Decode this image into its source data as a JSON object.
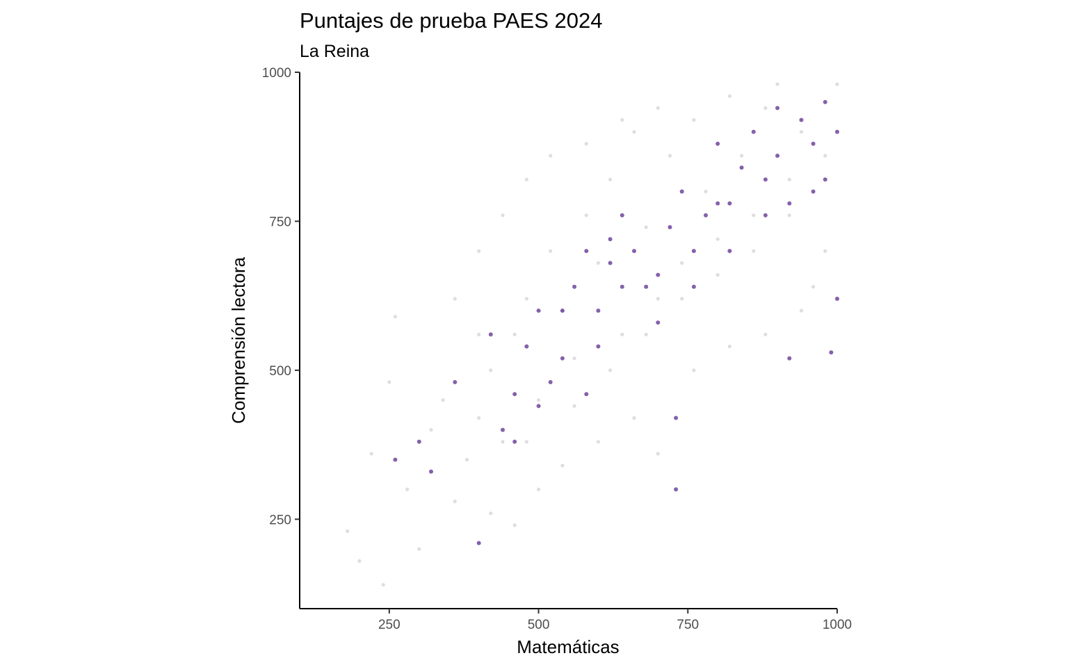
{
  "chart_data": {
    "type": "scatter",
    "title": "Puntajes de prueba PAES 2024",
    "subtitle": "La Reina",
    "xlabel": "Matemáticas",
    "ylabel": "Comprensión lectora",
    "xlim": [
      100,
      1000
    ],
    "ylim": [
      100,
      1000
    ],
    "x_ticks": [
      250,
      500,
      750,
      1000
    ],
    "y_ticks": [
      250,
      500,
      750,
      1000
    ],
    "grid": false,
    "legend": "none",
    "colors": {
      "highlight": "#5b2c8f",
      "background_points": "#c8c8c8"
    },
    "series": [
      {
        "role": "background",
        "points": [
          [
            180,
            230
          ],
          [
            200,
            180
          ],
          [
            220,
            360
          ],
          [
            240,
            140
          ],
          [
            260,
            590
          ],
          [
            250,
            480
          ],
          [
            280,
            300
          ],
          [
            300,
            200
          ],
          [
            320,
            400
          ],
          [
            340,
            450
          ],
          [
            360,
            280
          ],
          [
            380,
            350
          ],
          [
            400,
            420
          ],
          [
            420,
            500
          ],
          [
            440,
            380
          ],
          [
            460,
            560
          ],
          [
            480,
            620
          ],
          [
            500,
            450
          ],
          [
            520,
            700
          ],
          [
            540,
            600
          ],
          [
            560,
            520
          ],
          [
            580,
            760
          ],
          [
            600,
            680
          ],
          [
            620,
            820
          ],
          [
            640,
            560
          ],
          [
            660,
            900
          ],
          [
            680,
            740
          ],
          [
            700,
            620
          ],
          [
            720,
            860
          ],
          [
            740,
            680
          ],
          [
            760,
            920
          ],
          [
            780,
            800
          ],
          [
            800,
            720
          ],
          [
            820,
            960
          ],
          [
            840,
            860
          ],
          [
            860,
            700
          ],
          [
            880,
            940
          ],
          [
            900,
            980
          ],
          [
            920,
            760
          ],
          [
            940,
            900
          ],
          [
            960,
            640
          ],
          [
            980,
            860
          ],
          [
            1000,
            980
          ],
          [
            420,
            260
          ],
          [
            460,
            240
          ],
          [
            500,
            300
          ],
          [
            540,
            340
          ],
          [
            600,
            380
          ],
          [
            660,
            420
          ],
          [
            700,
            360
          ],
          [
            760,
            500
          ],
          [
            820,
            540
          ],
          [
            880,
            560
          ],
          [
            940,
            600
          ],
          [
            360,
            620
          ],
          [
            400,
            700
          ],
          [
            440,
            760
          ],
          [
            480,
            820
          ],
          [
            520,
            860
          ],
          [
            580,
            880
          ],
          [
            640,
            920
          ],
          [
            700,
            940
          ],
          [
            400,
            560
          ],
          [
            480,
            380
          ],
          [
            560,
            440
          ],
          [
            620,
            500
          ],
          [
            680,
            560
          ],
          [
            740,
            620
          ],
          [
            800,
            660
          ],
          [
            860,
            760
          ],
          [
            920,
            820
          ],
          [
            980,
            700
          ]
        ]
      },
      {
        "role": "highlight",
        "points": [
          [
            260,
            350
          ],
          [
            300,
            380
          ],
          [
            320,
            330
          ],
          [
            400,
            210
          ],
          [
            360,
            480
          ],
          [
            420,
            560
          ],
          [
            440,
            400
          ],
          [
            460,
            460
          ],
          [
            480,
            540
          ],
          [
            500,
            600
          ],
          [
            520,
            480
          ],
          [
            540,
            520
          ],
          [
            560,
            640
          ],
          [
            580,
            700
          ],
          [
            600,
            600
          ],
          [
            620,
            680
          ],
          [
            640,
            760
          ],
          [
            660,
            700
          ],
          [
            680,
            640
          ],
          [
            700,
            580
          ],
          [
            720,
            740
          ],
          [
            740,
            800
          ],
          [
            760,
            700
          ],
          [
            780,
            760
          ],
          [
            800,
            880
          ],
          [
            820,
            780
          ],
          [
            840,
            840
          ],
          [
            860,
            900
          ],
          [
            880,
            820
          ],
          [
            900,
            860
          ],
          [
            920,
            780
          ],
          [
            940,
            920
          ],
          [
            960,
            880
          ],
          [
            980,
            820
          ],
          [
            1000,
            900
          ],
          [
            730,
            300
          ],
          [
            730,
            420
          ],
          [
            920,
            520
          ],
          [
            1000,
            620
          ],
          [
            990,
            530
          ],
          [
            580,
            460
          ],
          [
            600,
            540
          ],
          [
            620,
            720
          ],
          [
            700,
            660
          ],
          [
            760,
            640
          ],
          [
            820,
            700
          ],
          [
            880,
            760
          ],
          [
            960,
            800
          ],
          [
            540,
            600
          ],
          [
            500,
            440
          ],
          [
            460,
            380
          ],
          [
            640,
            640
          ],
          [
            800,
            780
          ],
          [
            900,
            940
          ],
          [
            980,
            950
          ]
        ]
      }
    ]
  }
}
